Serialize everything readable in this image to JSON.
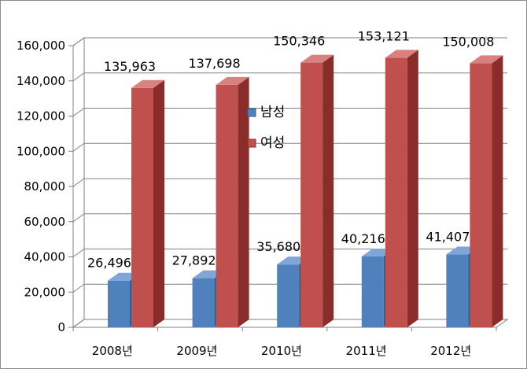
{
  "chart_data": {
    "type": "bar",
    "title": "",
    "xlabel": "",
    "ylabel": "",
    "categories": [
      "2008년",
      "2009년",
      "2010년",
      "2011년",
      "2012년"
    ],
    "series": [
      {
        "name": "남성",
        "values": [
          26496,
          27892,
          35680,
          40216,
          41407
        ],
        "labels": [
          "26,496",
          "27,892",
          "35,680",
          "40,216",
          "41,407"
        ]
      },
      {
        "name": "여성",
        "values": [
          135963,
          137698,
          150346,
          153121,
          150008
        ],
        "labels": [
          "135,963",
          "137,698",
          "150,346",
          "153,121",
          "150,008"
        ]
      }
    ],
    "yticks": [
      0,
      20000,
      40000,
      60000,
      80000,
      100000,
      120000,
      140000,
      160000
    ],
    "ytick_labels": [
      "0",
      "20,000",
      "40,000",
      "60,000",
      "80,000",
      "100,000",
      "120,000",
      "140,000",
      "160,000"
    ],
    "ylim": [
      0,
      160000
    ],
    "grid": true,
    "three_d": true,
    "legend_position": "inside-center",
    "colors": {
      "male_front": "#4f81bd",
      "male_side": "#2f5d93",
      "male_top": "#7ea6d9",
      "female_front": "#c0504d",
      "female_side": "#8a2c2a",
      "female_top": "#d9817f"
    }
  }
}
